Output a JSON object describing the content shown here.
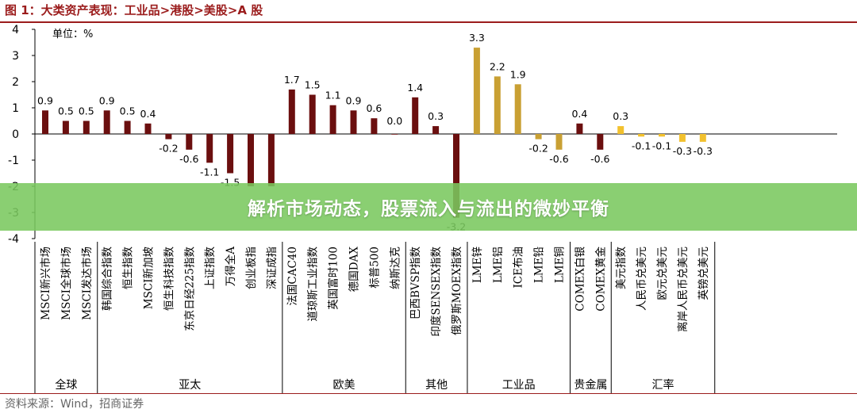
{
  "figure": {
    "title": "图 1：大类资产表现：工业品>港股>美股>A 股",
    "source": "资料来源：Wind，招商证券"
  },
  "banner": {
    "text": "解析市场动态，股票流入与流出的微妙平衡"
  },
  "colors": {
    "accent": "#9b1c1c",
    "equity_bar": "#6b0f0f",
    "commodity_bar": "#c9a033",
    "fx_bar": "#f2c12e",
    "banner_bg": "#7ac85e"
  },
  "chart_data": {
    "type": "bar",
    "ylabel": "单位：%",
    "ylim": [
      -4,
      4
    ],
    "yticks": [
      -4,
      -3,
      -2,
      -1,
      0,
      1,
      2,
      3,
      4
    ],
    "grid": false,
    "categories": [
      "MSCI新兴市场",
      "MSCI全球市场",
      "MSCI发达市场",
      "韩国综合指数",
      "恒生指数",
      "MSCI新加坡",
      "恒生科技指数",
      "东京日经225指数",
      "上证指数",
      "万得全A",
      "创业板指",
      "深证成指",
      "法国CAC40",
      "道琼斯工业指数",
      "英国富时100",
      "德国DAX",
      "标普500",
      "纳斯达克",
      "巴西BVSP指数",
      "印度SENSEX指数",
      "俄罗斯MOEX指数",
      "LME锌",
      "LME铝",
      "ICE布油",
      "LME铅",
      "LME铜",
      "COMEX白银",
      "COMEX黄金",
      "美元指数",
      "人民币兑美元",
      "欧元兑美元",
      "离岸人民币兑美元",
      "英镑兑美元"
    ],
    "values": [
      0.9,
      0.5,
      0.5,
      0.9,
      0.5,
      0.4,
      -0.2,
      -0.6,
      -1.1,
      -1.5,
      -2.0,
      -2.0,
      1.7,
      1.5,
      1.1,
      0.9,
      0.6,
      0.0,
      1.4,
      0.3,
      -3.2,
      3.3,
      2.2,
      1.9,
      -0.2,
      -0.6,
      0.4,
      -0.6,
      0.3,
      -0.1,
      -0.1,
      -0.3,
      -0.3
    ],
    "labels": [
      "0.9",
      "0.5",
      "0.5",
      "0.9",
      "0.5",
      "0.4",
      "-0.2",
      "-0.6",
      "-1.1",
      "-1.5",
      "",
      "",
      "1.7",
      "1.5",
      "1.1",
      "0.9",
      "0.6",
      "0.0",
      "1.4",
      "0.3",
      "-3.2",
      "3.3",
      "2.2",
      "1.9",
      "-0.2",
      "-0.6",
      "0.4",
      "-0.6",
      "0.3",
      "-0.1",
      "-0.1",
      "-0.3",
      "-0.3"
    ],
    "color_keys": [
      "equity_bar",
      "equity_bar",
      "equity_bar",
      "equity_bar",
      "equity_bar",
      "equity_bar",
      "equity_bar",
      "equity_bar",
      "equity_bar",
      "equity_bar",
      "equity_bar",
      "equity_bar",
      "equity_bar",
      "equity_bar",
      "equity_bar",
      "equity_bar",
      "equity_bar",
      "equity_bar",
      "equity_bar",
      "equity_bar",
      "equity_bar",
      "commodity_bar",
      "commodity_bar",
      "commodity_bar",
      "commodity_bar",
      "commodity_bar",
      "equity_bar",
      "equity_bar",
      "fx_bar",
      "fx_bar",
      "fx_bar",
      "fx_bar",
      "fx_bar"
    ],
    "groups": [
      {
        "name": "全球",
        "start": 0,
        "end": 2
      },
      {
        "name": "亚太",
        "start": 3,
        "end": 11
      },
      {
        "name": "欧美",
        "start": 12,
        "end": 17
      },
      {
        "name": "其他",
        "start": 18,
        "end": 20
      },
      {
        "name": "工业品",
        "start": 21,
        "end": 25
      },
      {
        "name": "贵金属",
        "start": 26,
        "end": 27
      },
      {
        "name": "汇率",
        "start": 28,
        "end": 32
      }
    ]
  }
}
